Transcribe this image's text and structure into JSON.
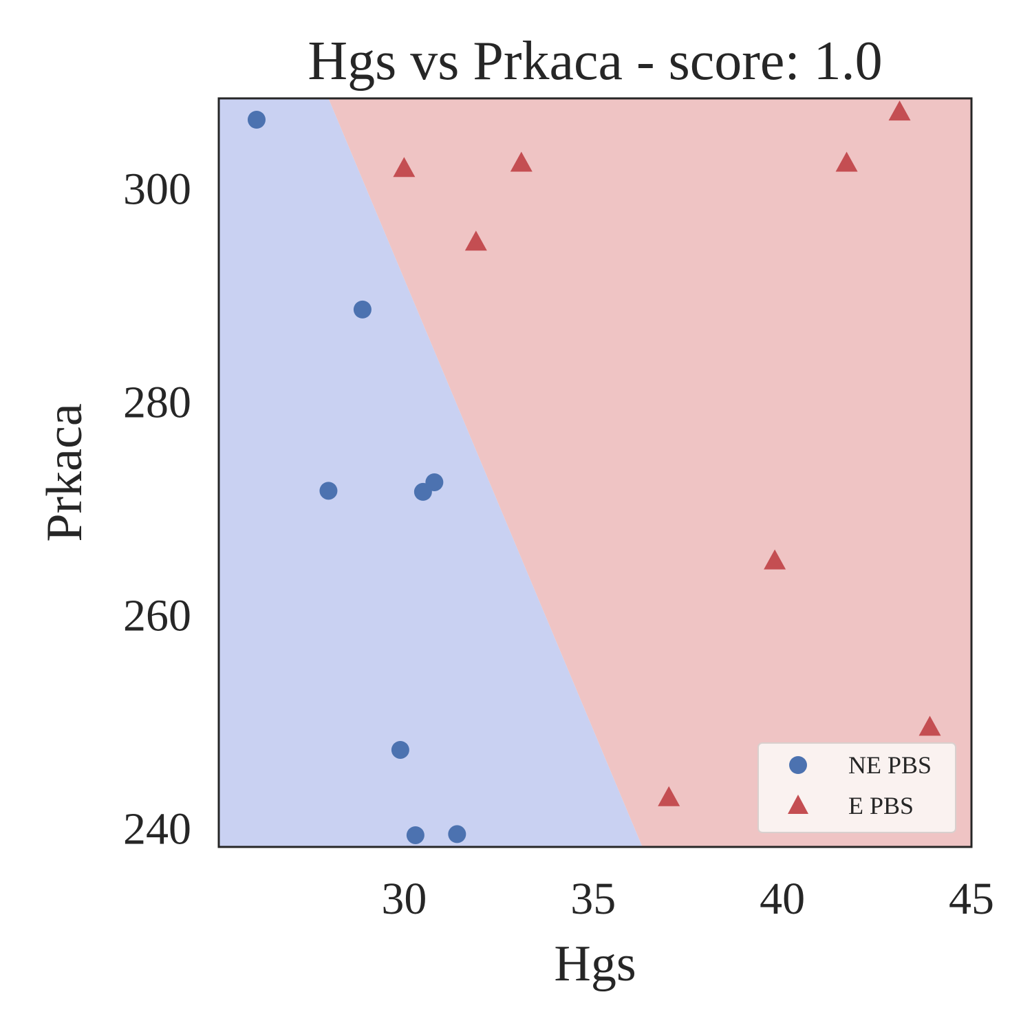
{
  "chart_data": {
    "type": "scatter",
    "title": "Hgs vs Prkaca - score: 1.0",
    "xlabel": "Hgs",
    "ylabel": "Prkaca",
    "xlim": [
      25.1,
      45.0
    ],
    "ylim": [
      238.3,
      308.5
    ],
    "xticks": [
      30,
      35,
      40,
      45
    ],
    "yticks": [
      240,
      260,
      280,
      300
    ],
    "grid": false,
    "legend_position": "bottom-right",
    "decision_boundary": {
      "points": [
        [
          28.0,
          308.5
        ],
        [
          36.3,
          238.3
        ]
      ],
      "left_region": "NE PBS",
      "right_region": "E PBS"
    },
    "series": [
      {
        "name": "NE PBS",
        "marker": "circle",
        "color": "#4c72b0",
        "region_color": "#c9d1f2",
        "points": [
          [
            26.1,
            306.5
          ],
          [
            28.9,
            288.7
          ],
          [
            28.0,
            271.7
          ],
          [
            30.5,
            271.6
          ],
          [
            30.8,
            272.5
          ],
          [
            29.9,
            247.4
          ],
          [
            30.3,
            239.4
          ],
          [
            31.4,
            239.5
          ]
        ]
      },
      {
        "name": "E PBS",
        "marker": "triangle",
        "color": "#c44e52",
        "region_color": "#efc4c4",
        "points": [
          [
            30.0,
            301.9
          ],
          [
            33.1,
            302.4
          ],
          [
            31.9,
            295.0
          ],
          [
            41.7,
            302.4
          ],
          [
            43.1,
            307.2
          ],
          [
            39.8,
            265.1
          ],
          [
            37.0,
            242.9
          ],
          [
            43.9,
            249.5
          ]
        ]
      }
    ]
  }
}
